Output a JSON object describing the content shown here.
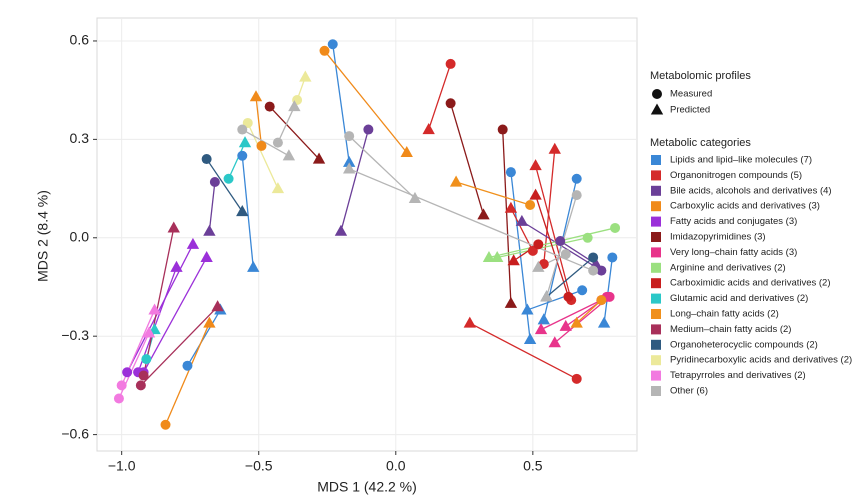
{
  "chart_data": {
    "type": "paired-scatter",
    "xlabel": "MDS 1 (42.2 %)",
    "ylabel": "MDS 2 (8.4 %)",
    "xlim": [
      -1.09,
      0.88
    ],
    "ylim": [
      -0.65,
      0.67
    ],
    "xticks": [
      {
        "value": -1.0,
        "label": "−1.0"
      },
      {
        "value": -0.5,
        "label": "−0.5"
      },
      {
        "value": 0.0,
        "label": "0.0"
      },
      0.5
    ],
    "yticks": [
      {
        "value": -0.6,
        "label": "−0.6"
      },
      {
        "value": -0.3,
        "label": "−0.3"
      },
      {
        "value": 0.0,
        "label": "0.0"
      },
      0.3,
      0.6
    ],
    "grid": true,
    "shape_legend_title": "Metabolomic profiles",
    "shapes": [
      "Measured",
      "Predicted"
    ],
    "legend_title": "Metabolic categories",
    "series": [
      {
        "name": "Lipids and lipid–like molecules (7)",
        "color": "#3a87d6",
        "measured_x": [
          -0.23,
          -0.56,
          -0.76,
          0.66,
          0.79,
          0.68,
          0.42
        ],
        "measured_y": [
          0.59,
          0.25,
          -0.39,
          0.18,
          -0.06,
          -0.16,
          0.2
        ],
        "predicted_x": [
          -0.17,
          -0.52,
          -0.64,
          0.54,
          0.76,
          0.48,
          0.49
        ],
        "predicted_y": [
          0.23,
          -0.09,
          -0.22,
          -0.25,
          -0.26,
          -0.22,
          -0.31
        ]
      },
      {
        "name": "Organonitrogen compounds (5)",
        "color": "#d42a2a",
        "measured_x": [
          0.2,
          0.66,
          0.64,
          0.5,
          0.54
        ],
        "measured_y": [
          0.53,
          -0.43,
          -0.19,
          -0.04,
          -0.08
        ],
        "predicted_x": [
          0.12,
          0.27,
          0.51,
          0.42,
          0.58
        ],
        "predicted_y": [
          0.33,
          -0.26,
          0.22,
          0.09,
          0.27
        ]
      },
      {
        "name": "Bile acids, alcohols and derivatives (4)",
        "color": "#6b3f98",
        "measured_x": [
          -0.66,
          -0.1,
          0.75,
          0.6
        ],
        "measured_y": [
          0.17,
          0.33,
          -0.1,
          -0.01
        ],
        "predicted_x": [
          -0.68,
          -0.2,
          0.46,
          0.73
        ],
        "predicted_y": [
          0.02,
          0.02,
          0.05,
          -0.08
        ]
      },
      {
        "name": "Carboxylic acids and derivatives (3)",
        "color": "#f08a1a",
        "measured_x": [
          -0.26,
          -0.49,
          -0.84
        ],
        "measured_y": [
          0.57,
          0.28,
          -0.57
        ],
        "predicted_x": [
          0.04,
          -0.51,
          -0.68
        ],
        "predicted_y": [
          0.26,
          0.43,
          -0.26
        ]
      },
      {
        "name": "Fatty acids and conjugates (3)",
        "color": "#9b30d9",
        "measured_x": [
          -0.98,
          -0.92,
          -0.94
        ],
        "measured_y": [
          -0.41,
          -0.41,
          -0.41
        ],
        "predicted_x": [
          -0.74,
          -0.69,
          -0.8
        ],
        "predicted_y": [
          -0.02,
          -0.06,
          -0.09
        ]
      },
      {
        "name": "Imidazopyrimidines (3)",
        "color": "#8b1a1a",
        "measured_x": [
          -0.46,
          0.2,
          0.39
        ],
        "measured_y": [
          0.4,
          0.41,
          0.33
        ],
        "predicted_x": [
          -0.28,
          0.32,
          0.42
        ],
        "predicted_y": [
          0.24,
          0.07,
          -0.2
        ]
      },
      {
        "name": "Very long–chain fatty acids (3)",
        "color": "#e8348b",
        "measured_x": [
          0.78,
          0.77,
          0.75
        ],
        "measured_y": [
          -0.18,
          -0.18,
          -0.19
        ],
        "predicted_x": [
          0.58,
          0.62,
          0.53
        ],
        "predicted_y": [
          -0.32,
          -0.27,
          -0.28
        ]
      },
      {
        "name": "Arginine and derivatives (2)",
        "color": "#9be080",
        "measured_x": [
          0.8,
          0.7
        ],
        "measured_y": [
          0.03,
          0.0
        ],
        "predicted_x": [
          0.34,
          0.37
        ],
        "predicted_y": [
          -0.06,
          -0.06
        ]
      },
      {
        "name": "Carboximidic acids and derivatives (2)",
        "color": "#c81e1e",
        "measured_x": [
          0.63,
          0.52
        ],
        "measured_y": [
          -0.18,
          -0.02
        ],
        "predicted_x": [
          0.51,
          0.43
        ],
        "predicted_y": [
          0.13,
          -0.07
        ]
      },
      {
        "name": "Glutamic acid and derivatives (2)",
        "color": "#2bc8c8",
        "measured_x": [
          -0.61,
          -0.91
        ],
        "measured_y": [
          0.18,
          -0.37
        ],
        "predicted_x": [
          -0.55,
          -0.88
        ],
        "predicted_y": [
          0.29,
          -0.28
        ]
      },
      {
        "name": "Long–chain fatty acids (2)",
        "color": "#f0901c",
        "measured_x": [
          0.75,
          0.49
        ],
        "measured_y": [
          -0.19,
          0.1
        ],
        "predicted_x": [
          0.66,
          0.22
        ],
        "predicted_y": [
          -0.26,
          0.17
        ]
      },
      {
        "name": "Medium–chain fatty acids (2)",
        "color": "#a8305a",
        "measured_x": [
          -0.92,
          -0.93
        ],
        "measured_y": [
          -0.42,
          -0.45
        ],
        "predicted_x": [
          -0.81,
          -0.65
        ],
        "predicted_y": [
          0.03,
          -0.21
        ]
      },
      {
        "name": "Organoheterocyclic compounds (2)",
        "color": "#2f5a80",
        "measured_x": [
          -0.69,
          0.72
        ],
        "measured_y": [
          0.24,
          -0.06
        ],
        "predicted_x": [
          -0.56,
          0.55
        ],
        "predicted_y": [
          0.08,
          -0.18
        ]
      },
      {
        "name": "Pyridinecarboxylic acids and derivatives (2)",
        "color": "#ece99a",
        "measured_x": [
          -0.36,
          -0.54
        ],
        "measured_y": [
          0.42,
          0.35
        ],
        "predicted_x": [
          -0.33,
          -0.43
        ],
        "predicted_y": [
          0.49,
          0.15
        ]
      },
      {
        "name": "Tetrapyrroles and derivatives (2)",
        "color": "#f27ae0",
        "measured_x": [
          -1.0,
          -1.01
        ],
        "measured_y": [
          -0.45,
          -0.49
        ],
        "predicted_x": [
          -0.88,
          -0.9
        ],
        "predicted_y": [
          -0.22,
          -0.29
        ]
      },
      {
        "name": "Other (6)",
        "color": "#b5b5b5",
        "measured_x": [
          -0.56,
          -0.43,
          -0.17,
          0.66,
          0.62,
          0.72
        ],
        "measured_y": [
          0.33,
          0.29,
          0.31,
          0.13,
          -0.05,
          -0.1
        ],
        "predicted_x": [
          -0.39,
          -0.37,
          0.07,
          0.55,
          0.52,
          -0.17
        ],
        "predicted_y": [
          0.25,
          0.4,
          0.12,
          -0.18,
          -0.09,
          0.21
        ]
      }
    ]
  }
}
